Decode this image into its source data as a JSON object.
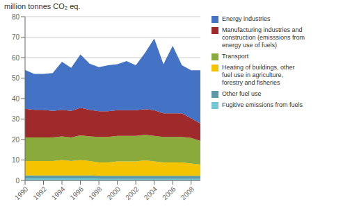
{
  "chart_data": {
    "type": "area",
    "stacked": true,
    "ylabel": "million tonnes CO₂ eq.",
    "x": [
      1990,
      1991,
      1992,
      1993,
      1994,
      1995,
      1996,
      1997,
      1998,
      1999,
      2000,
      2001,
      2002,
      2003,
      2004,
      2005,
      2006,
      2007,
      2008,
      2009
    ],
    "xlim": [
      1990,
      2009
    ],
    "xticks": [
      1990,
      1992,
      1994,
      1996,
      1998,
      2000,
      2002,
      2004,
      2006,
      2008
    ],
    "ylim": [
      0,
      80
    ],
    "yticks": [
      0,
      10,
      20,
      30,
      40,
      50,
      60,
      70,
      80
    ],
    "grid": true,
    "legend": "right",
    "series": [
      {
        "name": "Fugitive emissions from fuels",
        "color": "#71C7D4",
        "values": [
          1.0,
          1.0,
          1.0,
          1.0,
          1.0,
          1.0,
          1.0,
          1.0,
          0.8,
          0.8,
          0.8,
          0.8,
          0.8,
          0.8,
          0.8,
          0.8,
          0.8,
          0.8,
          0.8,
          0.8
        ]
      },
      {
        "name": "Other fuel use",
        "color": "#5B9BA8",
        "values": [
          1.5,
          1.5,
          1.5,
          1.5,
          1.5,
          1.5,
          1.5,
          1.5,
          1.5,
          1.5,
          1.5,
          1.5,
          1.5,
          1.5,
          1.5,
          1.5,
          1.5,
          1.5,
          1.5,
          1.5
        ]
      },
      {
        "name": "Heating of buildings, other\nfuel use in agriculture,\nforestry and fisheries",
        "color": "#F5C400",
        "values": [
          7.0,
          7.0,
          7.0,
          7.0,
          7.5,
          7.0,
          7.5,
          7.0,
          6.5,
          6.5,
          7.0,
          7.0,
          7.0,
          7.5,
          7.0,
          6.5,
          6.5,
          6.5,
          6.0,
          5.5
        ]
      },
      {
        "name": "Transport",
        "color": "#8AAB3C",
        "values": [
          11.5,
          11.5,
          11.5,
          11.5,
          11.5,
          11.5,
          12.0,
          12.0,
          12.5,
          12.5,
          12.5,
          12.5,
          12.5,
          12.5,
          12.5,
          12.5,
          12.5,
          12.5,
          12.5,
          11.5
        ]
      },
      {
        "name": "Manufacturing industries and\nconstruction (emisssions from\nenergy use of fuels)",
        "color": "#9E2A2B",
        "values": [
          14.0,
          13.5,
          13.5,
          13.0,
          13.0,
          13.0,
          13.5,
          13.0,
          12.5,
          12.5,
          12.5,
          12.5,
          12.5,
          12.5,
          12.5,
          11.5,
          11.5,
          11.5,
          9.5,
          8.5
        ]
      },
      {
        "name": "Energy industries",
        "color": "#4472C4",
        "values": [
          19.0,
          17.5,
          17.5,
          18.5,
          23.5,
          21.0,
          26.0,
          22.5,
          21.5,
          22.5,
          22.5,
          24.0,
          22.0,
          27.5,
          35.0,
          24.0,
          33.0,
          23.5,
          23.5,
          26.0
        ]
      }
    ]
  }
}
